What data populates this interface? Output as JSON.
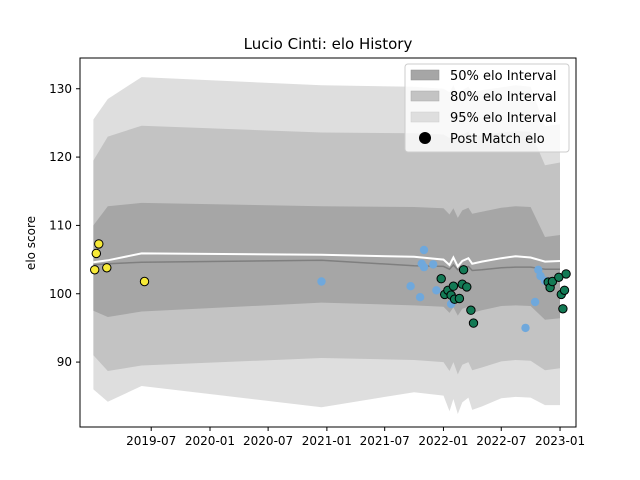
{
  "chart_data": {
    "type": "scatter",
    "title": "Lucio Cinti: elo History",
    "xlabel": "",
    "ylabel": "elo score",
    "x_ticks": [
      "2019-07",
      "2020-01",
      "2020-07",
      "2021-01",
      "2021-07",
      "2022-01",
      "2022-07",
      "2023-01"
    ],
    "y_ticks": [
      90,
      100,
      110,
      120,
      130
    ],
    "xlim": [
      "2018-11-20",
      "2023-02-20"
    ],
    "ylim": [
      80.5,
      134.5
    ],
    "legend_position": "upper right",
    "legend": [
      {
        "label": "50% elo Interval",
        "kind": "band",
        "color": "#a6a6a6"
      },
      {
        "label": "80% elo Interval",
        "kind": "band",
        "color": "#c3c3c3"
      },
      {
        "label": "95% elo Interval",
        "kind": "band",
        "color": "#dedede"
      },
      {
        "label": "Post Match elo",
        "kind": "marker",
        "color": "#000000"
      }
    ],
    "bands": {
      "x": [
        "2019-01-01",
        "2019-02-15",
        "2019-06-01",
        "2020-12-15",
        "2021-10-01",
        "2022-01-01",
        "2022-01-20",
        "2022-02-01",
        "2022-02-15",
        "2022-03-01",
        "2022-03-20",
        "2022-04-01",
        "2022-05-01",
        "2022-07-01",
        "2022-08-15",
        "2022-10-01",
        "2022-11-15",
        "2023-01-01"
      ],
      "p95_upper": [
        125.5,
        128.5,
        131.7,
        130.5,
        130.3,
        130.0,
        129.5,
        130.5,
        129.0,
        129.8,
        130.3,
        129.5,
        129.8,
        130.2,
        130.5,
        130.3,
        124.5,
        124.8
      ],
      "p80_upper": [
        119.5,
        123.0,
        124.6,
        123.6,
        123.5,
        123.3,
        122.8,
        123.6,
        122.4,
        123.3,
        123.7,
        122.9,
        123.2,
        123.6,
        123.8,
        123.7,
        118.8,
        119.2
      ],
      "p50_upper": [
        110.0,
        112.8,
        113.3,
        112.8,
        112.7,
        112.5,
        111.6,
        112.5,
        111.1,
        112.2,
        112.6,
        111.7,
        112.0,
        112.6,
        112.8,
        112.7,
        108.3,
        108.6
      ],
      "p50_lower": [
        97.5,
        96.6,
        97.4,
        98.7,
        98.3,
        98.1,
        97.2,
        98.0,
        96.8,
        97.8,
        98.1,
        97.2,
        97.6,
        98.2,
        98.3,
        98.2,
        96.2,
        96.4
      ],
      "p80_lower": [
        91.0,
        88.7,
        89.5,
        90.6,
        90.3,
        90.0,
        88.7,
        90.0,
        88.2,
        89.6,
        90.0,
        88.8,
        89.2,
        90.1,
        90.3,
        90.2,
        88.8,
        89.1
      ],
      "p95_lower": [
        86.0,
        84.2,
        86.5,
        83.4,
        85.6,
        85.1,
        82.8,
        84.6,
        82.4,
        84.1,
        84.8,
        83.0,
        83.5,
        84.7,
        84.9,
        84.8,
        83.7,
        83.7
      ],
      "mean_line": [
        104.2,
        104.4,
        104.6,
        104.9,
        104.1,
        104.0,
        103.6,
        104.2,
        103.5,
        103.8,
        104.0,
        103.4,
        103.5,
        103.8,
        103.9,
        103.9,
        103.6,
        103.6
      ],
      "median_line": [
        104.6,
        104.9,
        105.9,
        105.7,
        105.4,
        105.0,
        104.2,
        105.3,
        104.0,
        104.8,
        105.2,
        104.4,
        104.7,
        105.2,
        105.5,
        105.3,
        104.7,
        104.8
      ]
    },
    "series": [
      {
        "color": "#f7ea38",
        "edgecolor": "#000000",
        "points": [
          {
            "x": "2019-01-05",
            "y": 103.5
          },
          {
            "x": "2019-01-10",
            "y": 105.9
          },
          {
            "x": "2019-01-18",
            "y": 107.3
          },
          {
            "x": "2019-02-12",
            "y": 103.8
          },
          {
            "x": "2019-06-10",
            "y": 101.8
          }
        ]
      },
      {
        "color": "#6fa8dc",
        "edgecolor": "none",
        "points": [
          {
            "x": "2020-12-15",
            "y": 101.8
          },
          {
            "x": "2021-09-20",
            "y": 101.1
          },
          {
            "x": "2021-10-20",
            "y": 99.5
          },
          {
            "x": "2021-10-25",
            "y": 104.4
          },
          {
            "x": "2021-11-01",
            "y": 103.9
          },
          {
            "x": "2021-11-01",
            "y": 106.4
          },
          {
            "x": "2021-11-30",
            "y": 104.3
          },
          {
            "x": "2021-12-10",
            "y": 100.5
          },
          {
            "x": "2022-01-25",
            "y": 98.5
          },
          {
            "x": "2022-09-15",
            "y": 95.0
          },
          {
            "x": "2022-10-15",
            "y": 98.8
          },
          {
            "x": "2022-10-25",
            "y": 103.5
          },
          {
            "x": "2022-11-01",
            "y": 102.6
          },
          {
            "x": "2022-11-15",
            "y": 101.9
          }
        ]
      },
      {
        "color": "#137a55",
        "edgecolor": "#000000",
        "points": [
          {
            "x": "2021-12-25",
            "y": 102.2
          },
          {
            "x": "2022-01-05",
            "y": 99.9
          },
          {
            "x": "2022-01-15",
            "y": 100.5
          },
          {
            "x": "2022-01-25",
            "y": 99.8
          },
          {
            "x": "2022-02-01",
            "y": 101.1
          },
          {
            "x": "2022-02-05",
            "y": 99.2
          },
          {
            "x": "2022-02-20",
            "y": 99.3
          },
          {
            "x": "2022-03-01",
            "y": 101.4
          },
          {
            "x": "2022-03-05",
            "y": 103.5
          },
          {
            "x": "2022-03-15",
            "y": 101.0
          },
          {
            "x": "2022-03-28",
            "y": 97.6
          },
          {
            "x": "2022-04-05",
            "y": 95.7
          },
          {
            "x": "2022-11-25",
            "y": 101.7
          },
          {
            "x": "2022-12-01",
            "y": 100.9
          },
          {
            "x": "2022-12-08",
            "y": 101.8
          },
          {
            "x": "2022-12-28",
            "y": 102.4
          },
          {
            "x": "2023-01-05",
            "y": 99.9
          },
          {
            "x": "2023-01-10",
            "y": 97.8
          },
          {
            "x": "2023-01-15",
            "y": 100.5
          },
          {
            "x": "2023-01-20",
            "y": 102.9
          }
        ]
      }
    ]
  }
}
